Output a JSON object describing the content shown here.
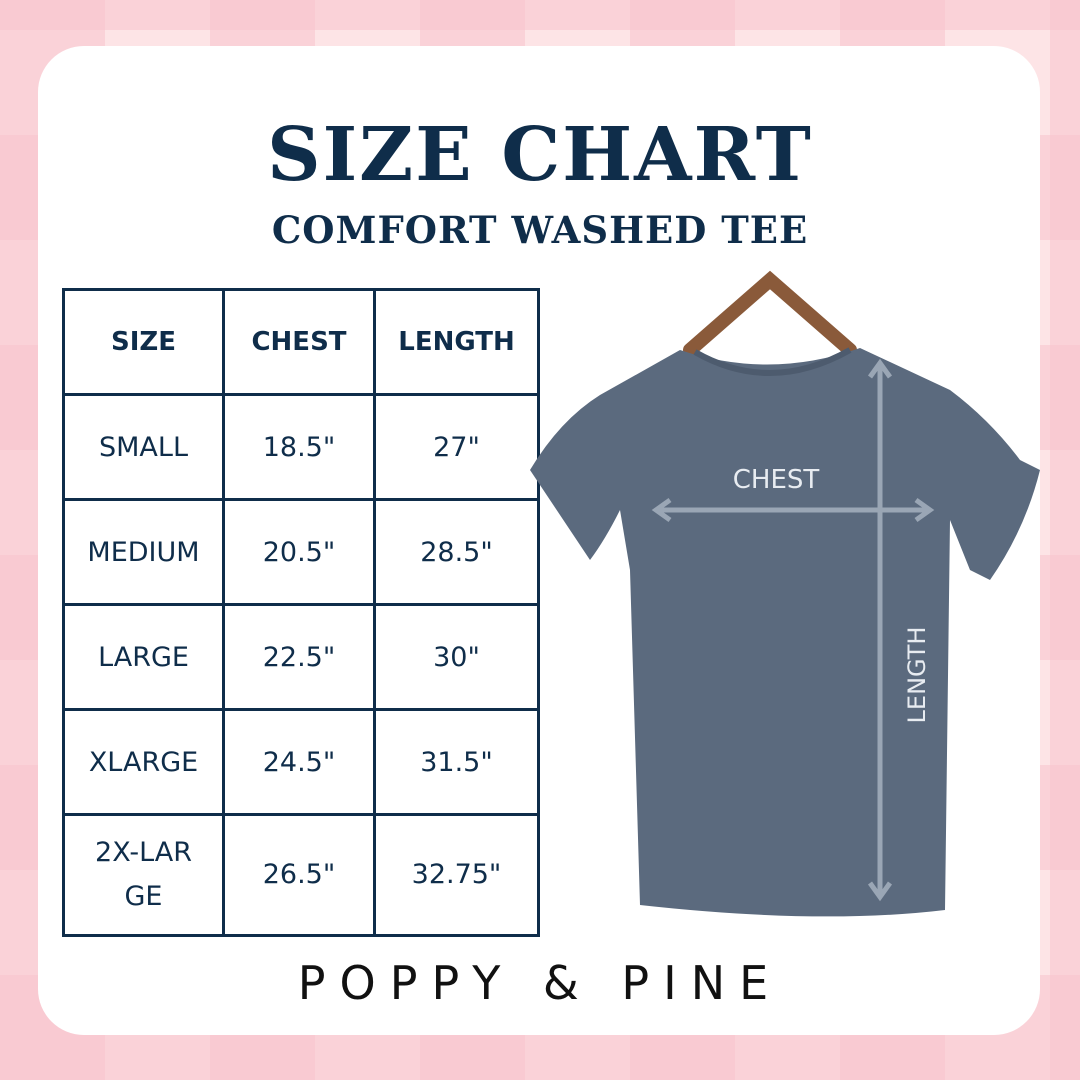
{
  "header": {
    "title": "SIZE CHART",
    "subtitle": "COMFORT WASHED TEE"
  },
  "table": {
    "columns": [
      "SIZE",
      "CHEST",
      "LENGTH"
    ],
    "rows": [
      [
        "SMALL",
        "18.5\"",
        "27\""
      ],
      [
        "MEDIUM",
        "20.5\"",
        "28.5\""
      ],
      [
        "LARGE",
        "22.5\"",
        "30\""
      ],
      [
        "XLARGE",
        "24.5\"",
        "31.5\""
      ],
      [
        "2X-LARGE",
        "26.5\"",
        "32.75\""
      ]
    ]
  },
  "diagram": {
    "chest_label": "CHEST",
    "length_label": "LENGTH",
    "shirt_color": "#5b6a7e"
  },
  "footer": {
    "brand": "POPPY & PINE"
  },
  "colors": {
    "navy": "#0f2d4a",
    "pink": "#f8c4cd"
  }
}
